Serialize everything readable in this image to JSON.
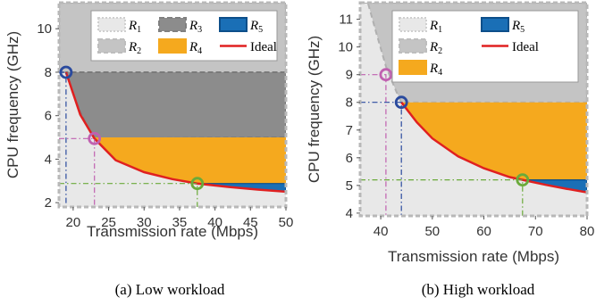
{
  "chart_data": [
    {
      "type": "area",
      "caption": "(a) Low workload",
      "xlabel": "Transmission rate (Mbps)",
      "ylabel": "CPU frequency (GHz)",
      "xlim": [
        18,
        50
      ],
      "ylim": [
        1.8,
        11.2
      ],
      "xticks": [
        20,
        25,
        30,
        35,
        40,
        45,
        50
      ],
      "yticks": [
        2,
        4,
        6,
        8,
        10
      ],
      "grid": false,
      "legend_position": "top-right",
      "legend": [
        {
          "sym": "R",
          "sub": "1",
          "region": "R1"
        },
        {
          "sym": "R",
          "sub": "3",
          "region": "R3"
        },
        {
          "sym": "R",
          "sub": "5",
          "region": "R5"
        },
        {
          "sym": "R",
          "sub": "2",
          "region": "R2"
        },
        {
          "sym": "R",
          "sub": "4",
          "region": "R4"
        },
        {
          "text": "Ideal",
          "region": "ideal"
        }
      ],
      "ideal_curve": {
        "x": [
          19,
          21,
          23,
          26,
          30,
          34,
          37.5,
          42,
          46,
          50
        ],
        "y": [
          8,
          6.05,
          4.95,
          3.95,
          3.4,
          3.08,
          2.88,
          2.72,
          2.6,
          2.5
        ]
      },
      "boundary_curve": {
        "x": [
          19,
          20,
          21,
          22,
          23
        ],
        "y": [
          8,
          7.0,
          6.15,
          5.5,
          4.95
        ]
      },
      "levels": {
        "r3_top": 8,
        "r4_top": 5,
        "r5_top": 2.88
      },
      "markers": [
        {
          "x": 19,
          "y": 8,
          "color": "#2a4a9e"
        },
        {
          "x": 23,
          "y": 4.95,
          "color": "#c060b0"
        },
        {
          "x": 37.5,
          "y": 2.88,
          "color": "#6aaa3a"
        }
      ]
    },
    {
      "type": "area",
      "caption": "(b) High workload",
      "xlabel": "Transmission rate (Mbps)",
      "ylabel": "CPU frequency (GHz)",
      "xlim": [
        36,
        80
      ],
      "ylim": [
        3.9,
        11.6
      ],
      "xticks": [
        40,
        50,
        60,
        70,
        80
      ],
      "yticks": [
        4,
        5,
        6,
        7,
        8,
        9,
        10,
        11
      ],
      "grid": false,
      "legend_position": "top-right",
      "legend": [
        {
          "sym": "R",
          "sub": "1",
          "region": "R1"
        },
        {
          "sym": "R",
          "sub": "5",
          "region": "R5"
        },
        {
          "sym": "R",
          "sub": "2",
          "region": "R2"
        },
        {
          "text": "Ideal",
          "region": "ideal"
        },
        {
          "sym": "R",
          "sub": "4",
          "region": "R4"
        }
      ],
      "ideal_curve": {
        "x": [
          44,
          47,
          50,
          55,
          60,
          65,
          67.5,
          72,
          76,
          80
        ],
        "y": [
          8,
          7.28,
          6.7,
          6.05,
          5.62,
          5.3,
          5.2,
          5.02,
          4.88,
          4.75
        ]
      },
      "boundary_curve": {
        "x": [
          37.5,
          39,
          40,
          41,
          42,
          43,
          44
        ],
        "y": [
          11.6,
          10.6,
          9.95,
          9.3,
          8.85,
          8.4,
          8
        ]
      },
      "levels": {
        "r4_top": 8,
        "r5_top": 5.2
      },
      "markers": [
        {
          "x": 41,
          "y": 9.0,
          "color": "#c060b0"
        },
        {
          "x": 44,
          "y": 8,
          "color": "#2a4a9e"
        },
        {
          "x": 67.5,
          "y": 5.2,
          "color": "#6aaa3a"
        }
      ]
    }
  ]
}
